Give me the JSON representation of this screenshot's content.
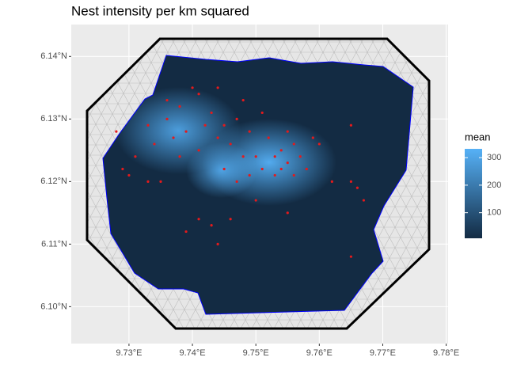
{
  "chart_data": {
    "type": "scatter",
    "title": "Nest intensity per km squared",
    "xlim": [
      9.7209,
      9.7803
    ],
    "ylim": [
      6.0941,
      6.1451
    ],
    "xticks": [
      {
        "value": 9.73,
        "label": "9.73°E"
      },
      {
        "value": 9.74,
        "label": "9.74°E"
      },
      {
        "value": 9.75,
        "label": "9.75°E"
      },
      {
        "value": 9.76,
        "label": "9.76°E"
      },
      {
        "value": 9.77,
        "label": "9.77°E"
      },
      {
        "value": 9.78,
        "label": "9.78°E"
      }
    ],
    "yticks": [
      {
        "value": 6.1,
        "label": "6.10°N"
      },
      {
        "value": 6.11,
        "label": "6.11°N"
      },
      {
        "value": 6.12,
        "label": "6.12°N"
      },
      {
        "value": 6.13,
        "label": "6.13°N"
      },
      {
        "value": 6.14,
        "label": "6.14°N"
      }
    ],
    "grid": true,
    "point_color": "#e41a1c",
    "x": [
      9.74,
      9.741,
      9.738,
      9.743,
      9.736,
      9.742,
      9.745,
      9.739,
      9.744,
      9.737,
      9.733,
      9.734,
      9.731,
      9.729,
      9.728,
      9.735,
      9.733,
      9.747,
      9.749,
      9.746,
      9.748,
      9.745,
      9.747,
      9.749,
      9.751,
      9.753,
      9.754,
      9.755,
      9.756,
      9.752,
      9.755,
      9.757,
      9.758,
      9.753,
      9.75,
      9.754,
      9.756,
      9.759,
      9.76,
      9.762,
      9.765,
      9.766,
      9.767,
      9.765,
      9.765,
      9.741,
      9.743,
      9.746,
      9.744,
      9.75,
      9.755,
      9.739,
      9.748,
      9.751,
      9.738,
      9.741,
      9.73,
      9.736,
      9.744
    ],
    "y": [
      6.135,
      6.134,
      6.132,
      6.131,
      6.13,
      6.129,
      6.129,
      6.128,
      6.127,
      6.127,
      6.129,
      6.126,
      6.124,
      6.122,
      6.128,
      6.12,
      6.12,
      6.13,
      6.128,
      6.126,
      6.124,
      6.122,
      6.12,
      6.121,
      6.122,
      6.124,
      6.125,
      6.123,
      6.126,
      6.127,
      6.128,
      6.124,
      6.122,
      6.121,
      6.124,
      6.122,
      6.121,
      6.127,
      6.126,
      6.12,
      6.12,
      6.119,
      6.117,
      6.129,
      6.108,
      6.114,
      6.113,
      6.114,
      6.11,
      6.117,
      6.115,
      6.112,
      6.133,
      6.131,
      6.124,
      6.125,
      6.121,
      6.133,
      6.135
    ],
    "legend": {
      "title": "mean",
      "lim": [
        7,
        332
      ],
      "ticks": [
        100,
        200,
        300
      ],
      "low_color": "#132b43",
      "high_color": "#56b1f7"
    }
  }
}
